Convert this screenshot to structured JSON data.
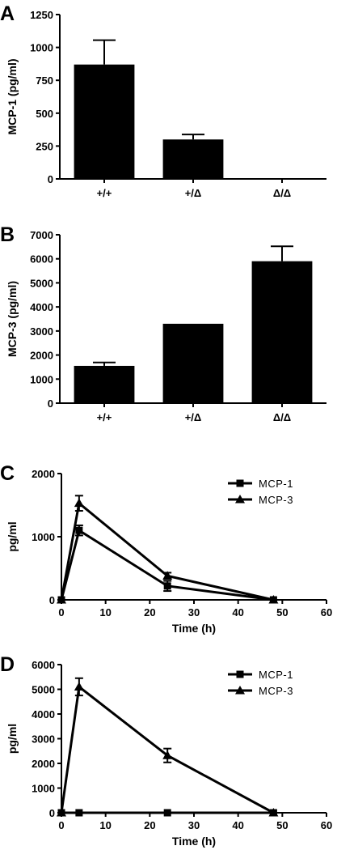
{
  "panels": [
    {
      "label": "A",
      "chart_data": {
        "type": "bar",
        "title": "",
        "xlabel": "",
        "ylabel": "MCP-1 (pg/ml)",
        "categories": [
          "+/+",
          "+/Δ",
          "Δ/Δ"
        ],
        "values": [
          870,
          300,
          4
        ],
        "errors": [
          185,
          38,
          0
        ],
        "ylim": [
          0,
          1250
        ],
        "yticks": [
          0,
          250,
          500,
          750,
          1000,
          1250
        ],
        "bar_color": "#000000",
        "grid": false
      }
    },
    {
      "label": "B",
      "chart_data": {
        "type": "bar",
        "title": "",
        "xlabel": "",
        "ylabel": "MCP-3 (pg/ml)",
        "categories": [
          "+/+",
          "+/Δ",
          "Δ/Δ"
        ],
        "values": [
          1550,
          3300,
          5900
        ],
        "errors": [
          140,
          0,
          620
        ],
        "ylim": [
          0,
          7000
        ],
        "yticks": [
          0,
          1000,
          2000,
          3000,
          4000,
          5000,
          6000,
          7000
        ],
        "bar_color": "#000000",
        "grid": false
      }
    },
    {
      "label": "C",
      "chart_data": {
        "type": "line",
        "title": "",
        "xlabel": "Time (h)",
        "ylabel": "pg/ml",
        "xlim": [
          0,
          60
        ],
        "ylim": [
          0,
          2000
        ],
        "xticks": [
          0,
          10,
          20,
          30,
          40,
          50,
          60
        ],
        "yticks": [
          0,
          1000,
          2000
        ],
        "legend_position": "top-right",
        "grid": false,
        "series": [
          {
            "name": "MCP-1",
            "marker": "square",
            "x": [
              0,
              4,
              24,
              48
            ],
            "y": [
              0,
              1100,
              220,
              0
            ],
            "err": [
              0,
              80,
              80,
              0
            ]
          },
          {
            "name": "MCP-3",
            "marker": "triangle",
            "x": [
              0,
              4,
              24,
              48
            ],
            "y": [
              0,
              1530,
              380,
              0
            ],
            "err": [
              0,
              120,
              50,
              0
            ]
          }
        ]
      }
    },
    {
      "label": "D",
      "chart_data": {
        "type": "line",
        "title": "",
        "xlabel": "Time (h)",
        "ylabel": "pg/ml",
        "xlim": [
          0,
          60
        ],
        "ylim": [
          0,
          6000
        ],
        "xticks": [
          0,
          10,
          20,
          30,
          40,
          50,
          60
        ],
        "yticks": [
          0,
          1000,
          2000,
          3000,
          4000,
          5000,
          6000
        ],
        "legend_position": "top-right",
        "grid": false,
        "series": [
          {
            "name": "MCP-1",
            "marker": "square",
            "x": [
              0,
              4,
              24,
              48
            ],
            "y": [
              0,
              0,
              0,
              0
            ],
            "err": [
              0,
              0,
              0,
              0
            ]
          },
          {
            "name": "MCP-3",
            "marker": "triangle",
            "x": [
              0,
              4,
              24,
              48
            ],
            "y": [
              0,
              5100,
              2320,
              0
            ],
            "err": [
              0,
              350,
              280,
              0
            ]
          }
        ]
      }
    }
  ]
}
